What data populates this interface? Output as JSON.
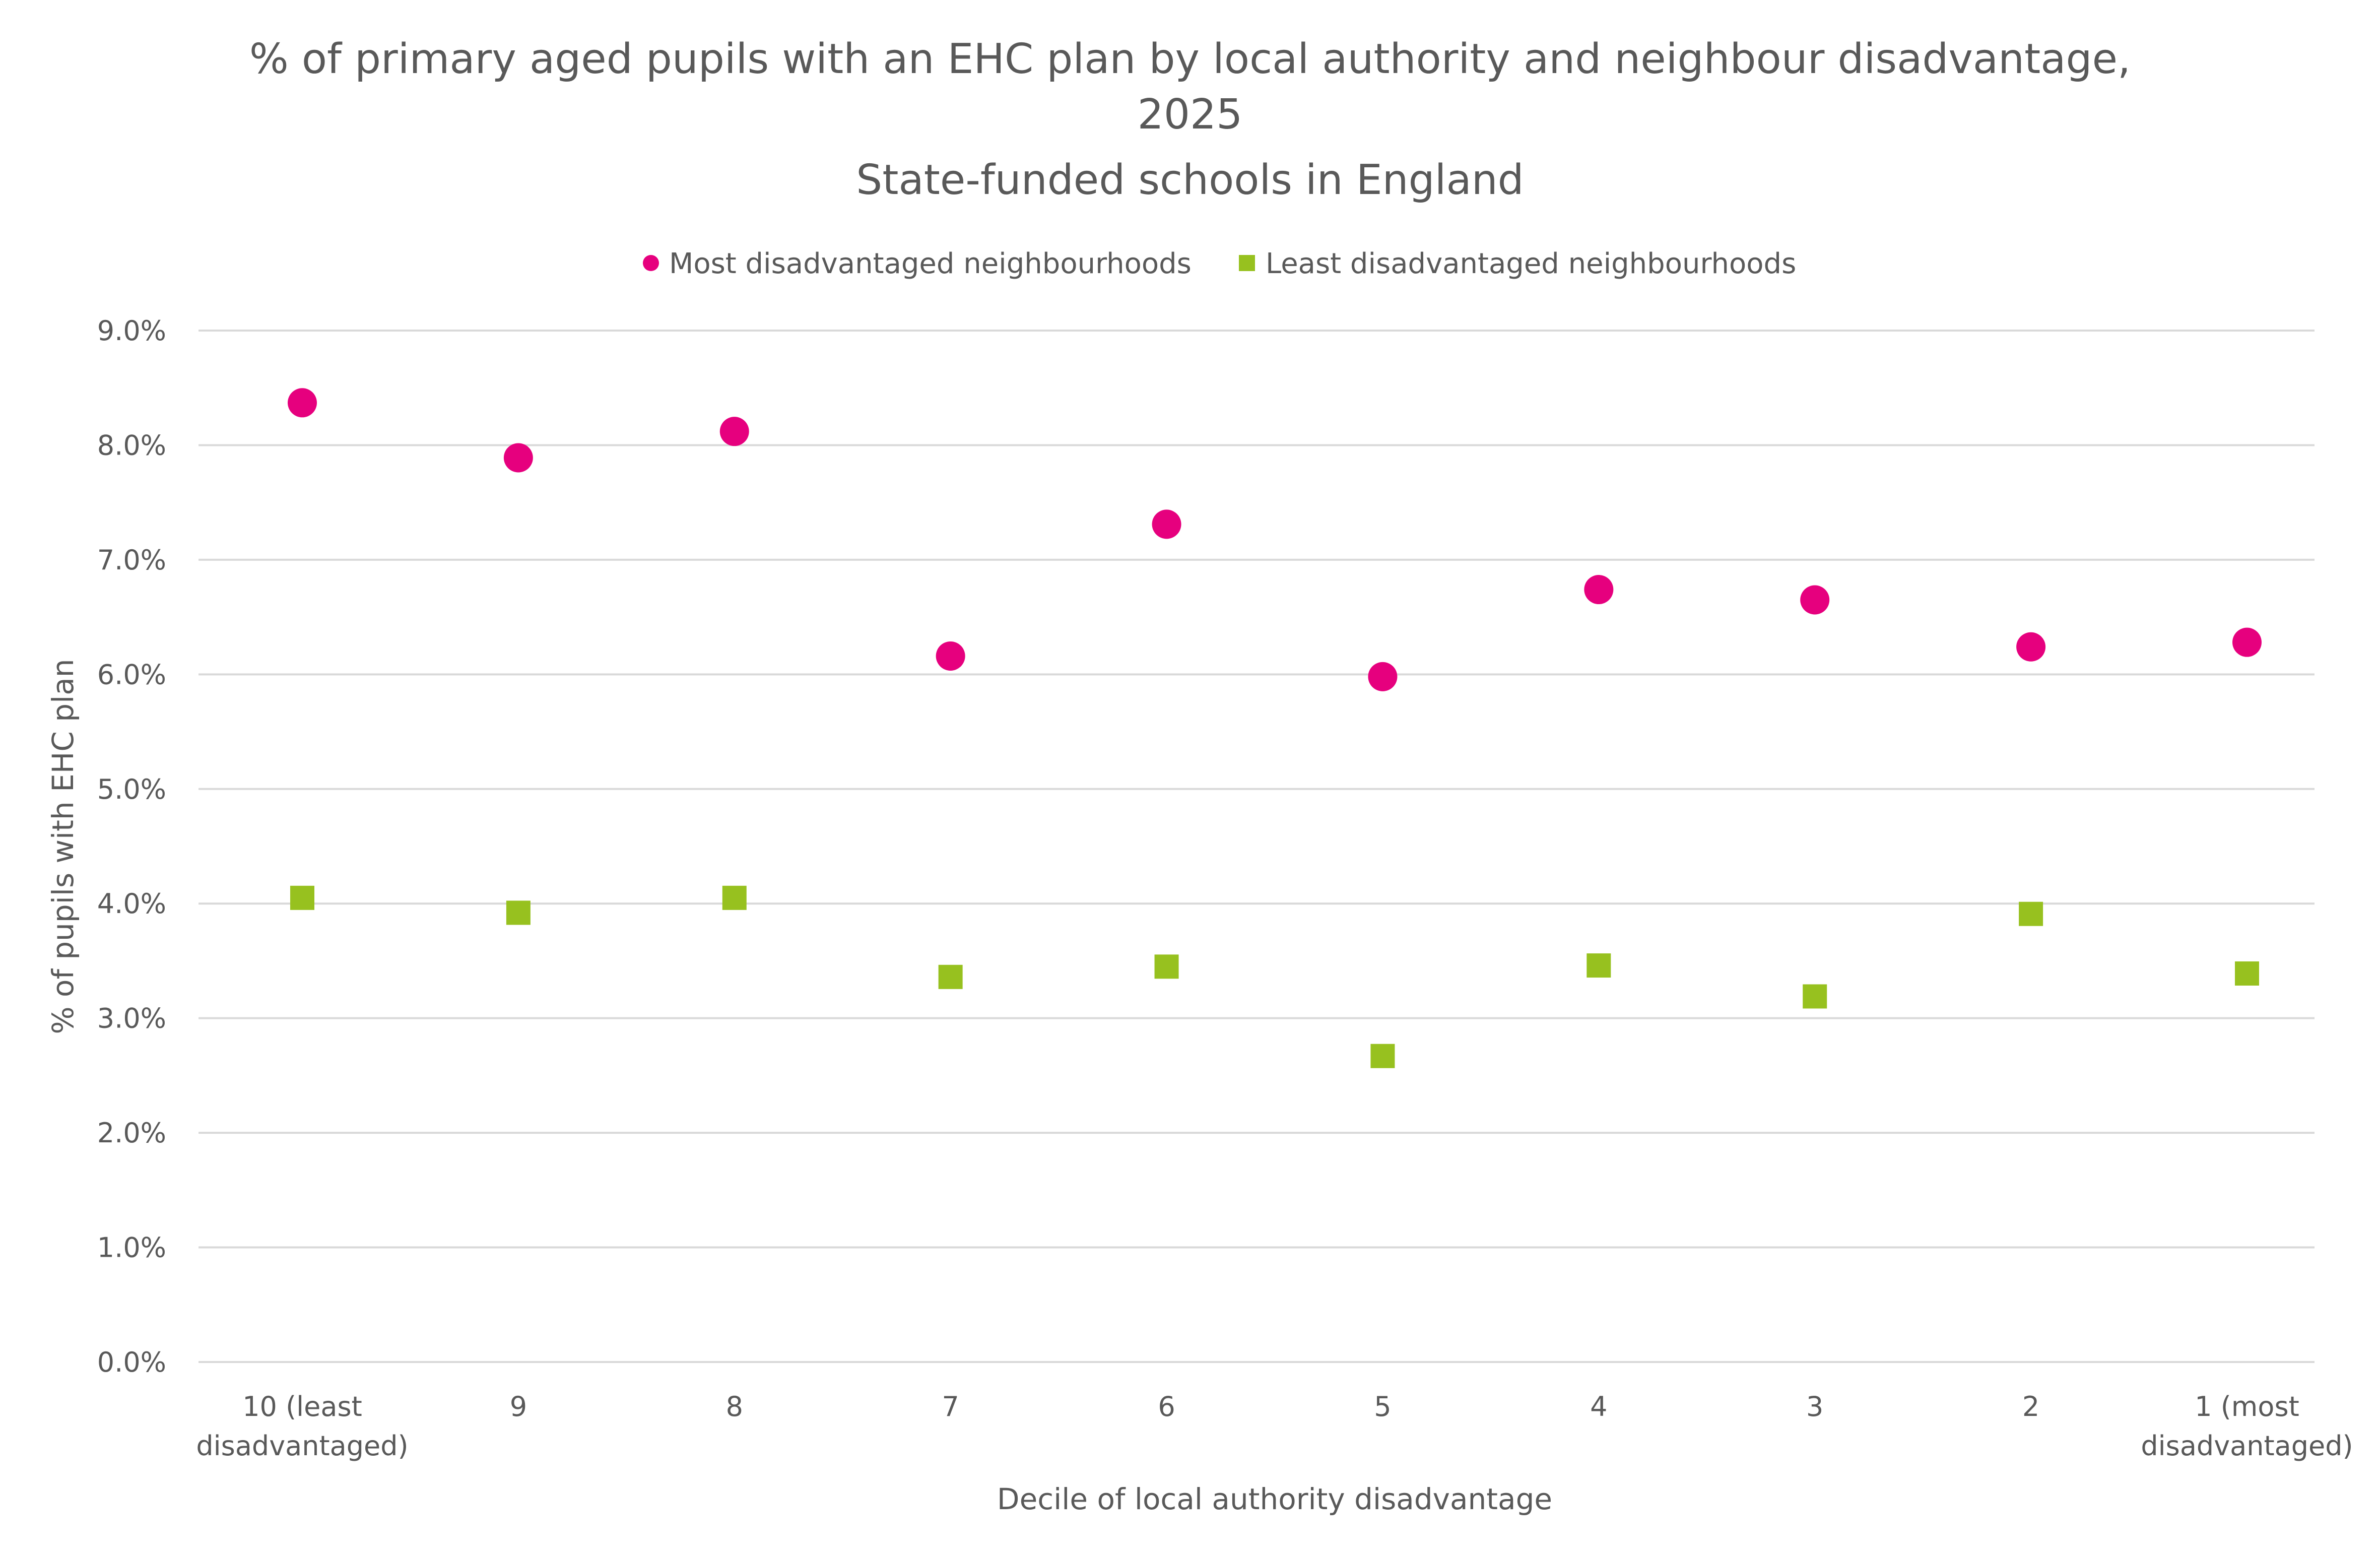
{
  "chart_data": {
    "type": "scatter",
    "title": [
      "% of primary aged pupils with an EHC plan by local authority and neighbour disadvantage,",
      "2025",
      "State-funded schools in England"
    ],
    "xlabel": "Decile of local authority disadvantage",
    "ylabel": "% of pupils with EHC plan",
    "categories": [
      [
        "10 (least",
        "disadvantaged)"
      ],
      [
        "9"
      ],
      [
        "8"
      ],
      [
        "7"
      ],
      [
        "6"
      ],
      [
        "5"
      ],
      [
        "4"
      ],
      [
        "3"
      ],
      [
        "2"
      ],
      [
        "1 (most",
        "disadvantaged)"
      ]
    ],
    "ylim": [
      0,
      9
    ],
    "yticks": [
      0,
      1,
      2,
      3,
      4,
      5,
      6,
      7,
      8,
      9
    ],
    "ytick_labels": [
      "0.0%",
      "1.0%",
      "2.0%",
      "3.0%",
      "4.0%",
      "5.0%",
      "6.0%",
      "7.0%",
      "8.0%",
      "9.0%"
    ],
    "grid": true,
    "legend_position": "top",
    "series": [
      {
        "name": "Most disadvantaged neighbourhoods",
        "marker": "circle",
        "color": "#E6007E",
        "values": [
          8.37,
          7.89,
          8.12,
          6.16,
          7.31,
          5.98,
          6.74,
          6.65,
          6.24,
          6.28
        ]
      },
      {
        "name": "Least disadvantaged neighbourhoods",
        "marker": "square",
        "color": "#97C11F",
        "values": [
          4.05,
          3.92,
          4.05,
          3.36,
          3.45,
          2.67,
          3.46,
          3.19,
          3.91,
          3.39
        ]
      }
    ]
  }
}
